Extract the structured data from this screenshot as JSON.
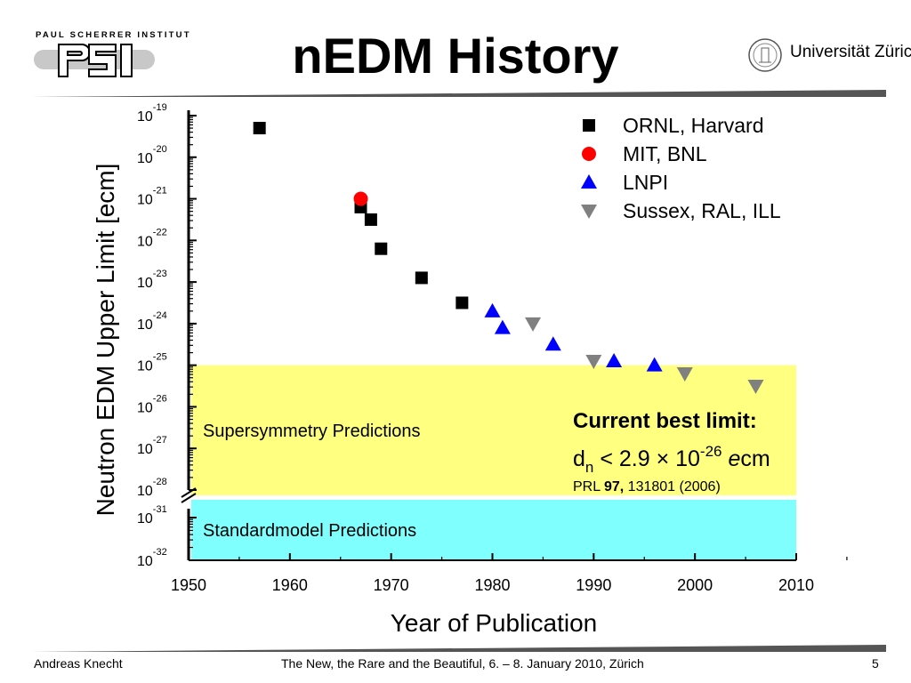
{
  "slide": {
    "title": "nEDM History",
    "logo_left_text": "PAUL SCHERRER INSTITUT",
    "logo_right_text": "Universität Zürich"
  },
  "footer": {
    "author": "Andreas Knecht",
    "event": "The New, the Rare and the Beautiful, 6. – 8. January 2010, Zürich",
    "page": "5"
  },
  "colors": {
    "susy_band": "#ffff80",
    "sm_band": "#80ffff",
    "ornl": "#000000",
    "mit": "#ff0000",
    "lnpi": "#0000ff",
    "sussex": "#808080",
    "rule": "#555555"
  },
  "chart_data": {
    "type": "scatter",
    "title": "",
    "xlabel": "Year of Publication",
    "ylabel": "Neutron EDM Upper Limit [ecm]",
    "xlim": [
      1950,
      2010
    ],
    "ylim_exponent": [
      -32,
      -19
    ],
    "y_scale": "log10 with axis break between 1e-28 and 1e-31",
    "x_ticks": [
      "1950",
      "1960",
      "1970",
      "1980",
      "1990",
      "2000",
      "2010"
    ],
    "y_ticks": [
      {
        "base": "10",
        "exp": "-19"
      },
      {
        "base": "10",
        "exp": "-20"
      },
      {
        "base": "10",
        "exp": "-21"
      },
      {
        "base": "10",
        "exp": "-22"
      },
      {
        "base": "10",
        "exp": "-23"
      },
      {
        "base": "10",
        "exp": "-24"
      },
      {
        "base": "10",
        "exp": "-25"
      },
      {
        "base": "10",
        "exp": "-26"
      },
      {
        "base": "10",
        "exp": "-27"
      },
      {
        "base": "10",
        "exp": "-28"
      },
      {
        "base": "10",
        "exp": "-31"
      },
      {
        "base": "10",
        "exp": "-32"
      }
    ],
    "series": [
      {
        "name": "ORNL, Harvard",
        "marker": "square",
        "color": "#000000",
        "points": [
          [
            1957,
            -19.3
          ],
          [
            1967,
            -21.2
          ],
          [
            1968,
            -21.5
          ],
          [
            1969,
            -22.2
          ],
          [
            1973,
            -22.9
          ],
          [
            1977,
            -23.5
          ]
        ]
      },
      {
        "name": "MIT, BNL",
        "marker": "circle",
        "color": "#ff0000",
        "points": [
          [
            1967,
            -21.0
          ]
        ]
      },
      {
        "name": "LNPI",
        "marker": "triangle-up",
        "color": "#0000ff",
        "points": [
          [
            1980,
            -23.7
          ],
          [
            1981,
            -24.1
          ],
          [
            1986,
            -24.5
          ],
          [
            1992,
            -24.9
          ],
          [
            1996,
            -25.0
          ]
        ]
      },
      {
        "name": "Sussex, RAL, ILL",
        "marker": "triangle-down",
        "color": "#808080",
        "points": [
          [
            1984,
            -24.0
          ],
          [
            1990,
            -24.9
          ],
          [
            1999,
            -25.2
          ],
          [
            2006,
            -25.5
          ]
        ]
      }
    ],
    "bands": [
      {
        "label": "Supersymmetry Predictions",
        "color": "#ffff80",
        "x_range": [
          1950,
          2010
        ],
        "y_exp_range": [
          -28,
          -25
        ]
      },
      {
        "label": "Standardmodel Predictions",
        "color": "#80ffff",
        "x_range": [
          1950,
          2010
        ],
        "y_exp_range": [
          -32,
          -31
        ]
      }
    ],
    "annotation": {
      "heading": "Current best limit:",
      "formula_d": "d",
      "formula_sub": "n",
      "formula_mid": " < 2.9 × 10",
      "formula_exp": "-26",
      "formula_e": " e",
      "formula_unit": "cm",
      "ref_prefix": "PRL ",
      "ref_volume": "97,",
      "ref_rest": " 131801 (2006)"
    }
  }
}
